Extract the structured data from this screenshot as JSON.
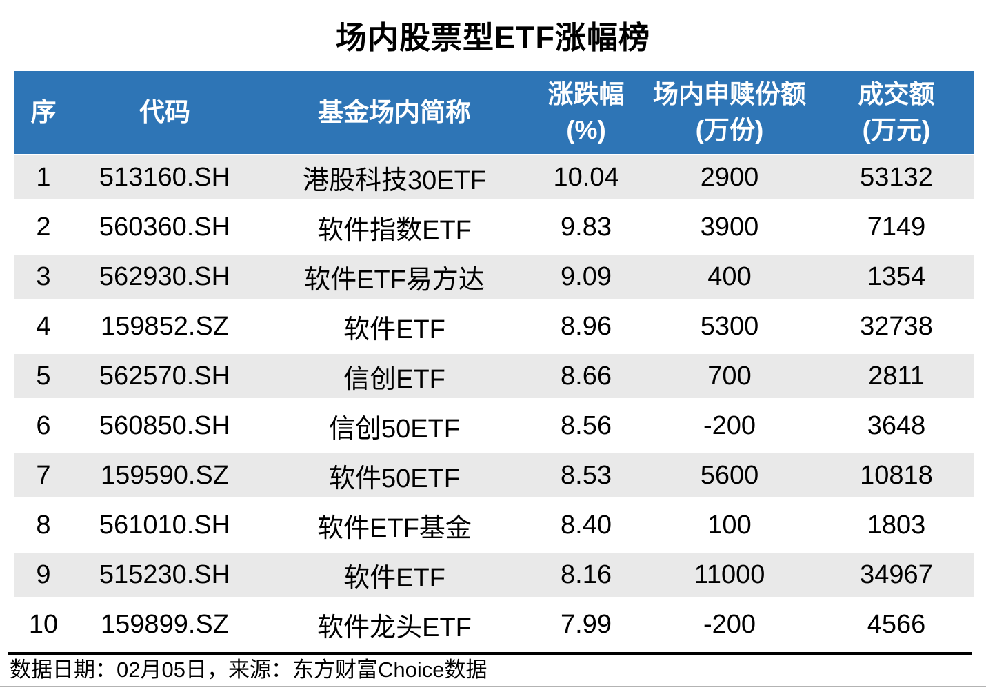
{
  "title": "场内股票型ETF涨幅榜",
  "chart_data": {
    "type": "table",
    "title": "场内股票型ETF涨幅榜",
    "columns": [
      {
        "label": "序",
        "unit": ""
      },
      {
        "label": "代码",
        "unit": ""
      },
      {
        "label": "基金场内简称",
        "unit": ""
      },
      {
        "label": "涨跌幅",
        "unit": "(%)"
      },
      {
        "label": "场内申赎份额",
        "unit": "(万份)"
      },
      {
        "label": "成交额",
        "unit": "(万元)"
      }
    ],
    "rows": [
      [
        "1",
        "513160.SH",
        "港股科技30ETF",
        "10.04",
        "2900",
        "53132"
      ],
      [
        "2",
        "560360.SH",
        "软件指数ETF",
        "9.83",
        "3900",
        "7149"
      ],
      [
        "3",
        "562930.SH",
        "软件ETF易方达",
        "9.09",
        "400",
        "1354"
      ],
      [
        "4",
        "159852.SZ",
        "软件ETF",
        "8.96",
        "5300",
        "32738"
      ],
      [
        "5",
        "562570.SH",
        "信创ETF",
        "8.66",
        "700",
        "2811"
      ],
      [
        "6",
        "560850.SH",
        "信创50ETF",
        "8.56",
        "-200",
        "3648"
      ],
      [
        "7",
        "159590.SZ",
        "软件50ETF",
        "8.53",
        "5600",
        "10818"
      ],
      [
        "8",
        "561010.SH",
        "软件ETF基金",
        "8.40",
        "100",
        "1803"
      ],
      [
        "9",
        "515230.SH",
        "软件ETF",
        "8.16",
        "11000",
        "34967"
      ],
      [
        "10",
        "159899.SZ",
        "软件龙头ETF",
        "7.99",
        "-200",
        "4566"
      ]
    ]
  },
  "footer": {
    "note": "数据日期：02月05日，来源：东方财富Choice数据"
  },
  "colors": {
    "header_bg": "#2E75B6",
    "stripe_bg": "#E9E9E9",
    "divider": "#000000",
    "bottom_rule": "#B3B3B3"
  }
}
